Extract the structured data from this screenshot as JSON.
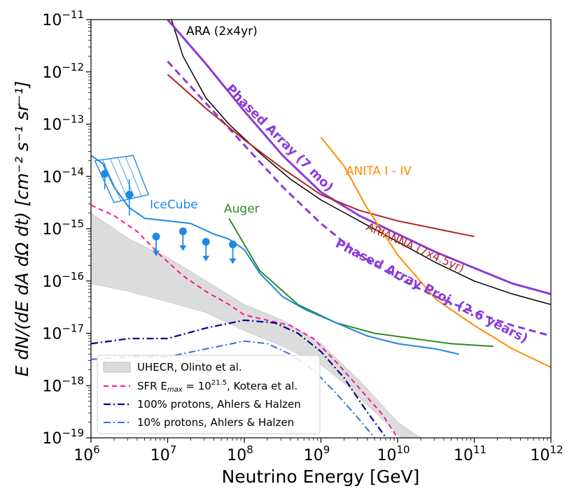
{
  "chart_data": {
    "type": "line",
    "title": "",
    "xlabel": "Neutrino Energy [GeV]",
    "ylabel": "E dN/(dE dA dΩ dt) [cm⁻² s⁻¹ sr⁻¹]",
    "xscale": "log",
    "yscale": "log",
    "xlim_exp": [
      6,
      12
    ],
    "ylim_exp": [
      -19,
      -11
    ],
    "x_tick_labels": [
      "10",
      "10",
      "10",
      "10",
      "10",
      "10",
      "10"
    ],
    "x_tick_exps": [
      "6",
      "7",
      "8",
      "9",
      "10",
      "11",
      "12"
    ],
    "y_tick_labels": [
      "10",
      "10",
      "10",
      "10",
      "10",
      "10",
      "10",
      "10",
      "10"
    ],
    "y_tick_exps": [
      "−19",
      "−18",
      "−17",
      "−16",
      "−15",
      "−14",
      "−13",
      "−12",
      "−11"
    ],
    "series": [
      {
        "name": "ARA (2x4yr)",
        "label": "ARA (2x4yr)",
        "color": "#000000",
        "width": 1.5,
        "dash": "",
        "points": [
          [
            7.05,
            -11.0
          ],
          [
            7.2,
            -11.7
          ],
          [
            7.5,
            -12.5
          ],
          [
            7.8,
            -13.0
          ],
          [
            8.2,
            -13.55
          ],
          [
            8.6,
            -14.05
          ],
          [
            9.0,
            -14.45
          ],
          [
            9.5,
            -14.85
          ],
          [
            10.0,
            -15.25
          ],
          [
            10.5,
            -15.65
          ],
          [
            11.0,
            -16.0
          ],
          [
            11.5,
            -16.25
          ],
          [
            12.0,
            -16.45
          ]
        ]
      },
      {
        "name": "Phased Array (7 mo)",
        "label": "Phased Array (7 mo)",
        "color": "#8b3bdb",
        "width": 3,
        "dash": "",
        "points": [
          [
            7.0,
            -11.0
          ],
          [
            7.5,
            -11.85
          ],
          [
            8.0,
            -12.75
          ],
          [
            8.5,
            -13.6
          ],
          [
            9.0,
            -14.3
          ],
          [
            9.5,
            -14.75
          ],
          [
            10.0,
            -15.1
          ],
          [
            10.5,
            -15.45
          ],
          [
            11.0,
            -15.75
          ],
          [
            11.5,
            -16.05
          ],
          [
            12.0,
            -16.25
          ]
        ]
      },
      {
        "name": "Phased Array Proj. (2.6 years)",
        "label": "Phased Array Proj. (2.6 years)",
        "color": "#8b3bdb",
        "width": 3,
        "dash": "10,6",
        "points": [
          [
            7.0,
            -11.8
          ],
          [
            7.5,
            -12.6
          ],
          [
            8.0,
            -13.4
          ],
          [
            8.5,
            -14.2
          ],
          [
            9.0,
            -14.9
          ],
          [
            9.5,
            -15.5
          ],
          [
            10.0,
            -15.95
          ],
          [
            10.5,
            -16.3
          ],
          [
            11.0,
            -16.6
          ],
          [
            11.5,
            -16.85
          ],
          [
            12.0,
            -17.05
          ]
        ]
      },
      {
        "name": "ARIANNA (7x4.5yr)",
        "label": "ARIANNA (7x4.5yr)",
        "color": "#b22222",
        "width": 2,
        "dash": "",
        "points": [
          [
            7.0,
            -12.05
          ],
          [
            7.5,
            -12.7
          ],
          [
            8.0,
            -13.3
          ],
          [
            8.5,
            -13.85
          ],
          [
            9.0,
            -14.35
          ],
          [
            9.5,
            -14.65
          ],
          [
            10.0,
            -14.85
          ],
          [
            10.5,
            -15.0
          ],
          [
            11.0,
            -15.15
          ]
        ]
      },
      {
        "name": "ANITA I - IV",
        "label": "ANITA I - IV",
        "color": "#ff8c00",
        "width": 2,
        "dash": "",
        "points": [
          [
            9.0,
            -13.25
          ],
          [
            9.3,
            -13.8
          ],
          [
            9.6,
            -14.6
          ],
          [
            10.0,
            -15.5
          ],
          [
            10.5,
            -16.35
          ],
          [
            11.0,
            -16.85
          ],
          [
            11.5,
            -17.3
          ],
          [
            12.0,
            -17.65
          ]
        ]
      },
      {
        "name": "Auger",
        "label": "Auger",
        "color": "#2e8b22",
        "width": 2,
        "dash": "",
        "points": [
          [
            7.8,
            -14.8
          ],
          [
            8.2,
            -15.8
          ],
          [
            8.7,
            -16.45
          ],
          [
            9.2,
            -16.8
          ],
          [
            9.7,
            -17.0
          ],
          [
            10.2,
            -17.1
          ],
          [
            10.7,
            -17.2
          ],
          [
            11.25,
            -17.25
          ]
        ]
      },
      {
        "name": "IceCube",
        "label": "IceCube",
        "color": "#1e88e5",
        "width": 2,
        "dash": "",
        "points": [
          [
            6.0,
            -13.6
          ],
          [
            6.15,
            -13.75
          ],
          [
            6.3,
            -14.2
          ],
          [
            6.5,
            -14.6
          ],
          [
            6.7,
            -14.8
          ],
          [
            7.0,
            -14.85
          ],
          [
            7.3,
            -14.9
          ],
          [
            7.6,
            -15.1
          ],
          [
            7.8,
            -15.2
          ],
          [
            8.0,
            -15.4
          ],
          [
            8.2,
            -15.85
          ],
          [
            8.5,
            -16.3
          ],
          [
            8.8,
            -16.55
          ],
          [
            9.2,
            -16.8
          ],
          [
            9.6,
            -17.05
          ],
          [
            10.0,
            -17.2
          ],
          [
            10.5,
            -17.3
          ],
          [
            10.8,
            -17.4
          ]
        ]
      },
      {
        "name": "SFR Kotera",
        "label": "SFR E_max=10^21.5, Kotera et al.",
        "color": "#ff1493",
        "width": 2,
        "dash": "7,5",
        "points": [
          [
            6.0,
            -14.55
          ],
          [
            6.3,
            -14.75
          ],
          [
            6.6,
            -15.05
          ],
          [
            6.9,
            -15.5
          ],
          [
            7.2,
            -15.9
          ],
          [
            7.5,
            -16.2
          ],
          [
            7.8,
            -16.45
          ],
          [
            8.0,
            -16.65
          ],
          [
            8.3,
            -16.75
          ],
          [
            8.6,
            -16.85
          ],
          [
            8.9,
            -17.1
          ],
          [
            9.2,
            -17.55
          ],
          [
            9.5,
            -18.05
          ],
          [
            9.8,
            -18.55
          ],
          [
            10.0,
            -19.0
          ]
        ]
      },
      {
        "name": "100% protons",
        "label": "100% protons, Ahlers & Halzen",
        "color": "#00008b",
        "width": 2.2,
        "dash": "10,4,2,4",
        "points": [
          [
            6.0,
            -17.2
          ],
          [
            6.5,
            -17.1
          ],
          [
            7.0,
            -17.1
          ],
          [
            7.5,
            -16.9
          ],
          [
            8.0,
            -16.75
          ],
          [
            8.4,
            -16.8
          ],
          [
            8.7,
            -17.0
          ],
          [
            9.0,
            -17.35
          ],
          [
            9.3,
            -17.85
          ],
          [
            9.6,
            -18.5
          ],
          [
            9.85,
            -19.0
          ]
        ]
      },
      {
        "name": "10% protons",
        "label": "10% protons, Ahlers & Halzen",
        "color": "#3b6fd8",
        "width": 2,
        "dash": "10,4,2,4",
        "points": [
          [
            6.0,
            -17.5
          ],
          [
            6.5,
            -17.45
          ],
          [
            7.0,
            -17.45
          ],
          [
            7.5,
            -17.3
          ],
          [
            8.0,
            -17.15
          ],
          [
            8.3,
            -17.2
          ],
          [
            8.6,
            -17.4
          ],
          [
            8.9,
            -17.7
          ],
          [
            9.2,
            -18.15
          ],
          [
            9.5,
            -18.65
          ],
          [
            9.7,
            -19.0
          ]
        ]
      }
    ],
    "uhecr_band": {
      "label": "UHECR, Olinto et al.",
      "color": "#dcdcdc",
      "upper": [
        [
          6.0,
          -14.7
        ],
        [
          6.5,
          -15.2
        ],
        [
          7.0,
          -15.55
        ],
        [
          7.5,
          -16.0
        ],
        [
          8.0,
          -16.45
        ],
        [
          8.5,
          -16.75
        ],
        [
          9.0,
          -17.2
        ],
        [
          9.5,
          -17.9
        ],
        [
          10.0,
          -18.7
        ],
        [
          10.3,
          -19.0
        ]
      ],
      "lower": [
        [
          10.05,
          -19.0
        ],
        [
          9.7,
          -18.5
        ],
        [
          9.3,
          -17.95
        ],
        [
          9.0,
          -17.6
        ],
        [
          8.5,
          -17.25
        ],
        [
          8.0,
          -16.95
        ],
        [
          7.5,
          -16.6
        ],
        [
          7.0,
          -16.4
        ],
        [
          6.5,
          -16.2
        ],
        [
          6.0,
          -16.05
        ]
      ]
    },
    "icecube_points": [
      {
        "x": 6.18,
        "y": -13.95,
        "yerr_lo": 0.3,
        "yerr_hi": 0.2
      },
      {
        "x": 6.5,
        "y": -14.35,
        "yerr_lo": 0.4,
        "yerr_hi": 0.3
      }
    ],
    "icecube_upper_limits": [
      {
        "x": 6.85,
        "y": -15.15
      },
      {
        "x": 7.2,
        "y": -15.05
      },
      {
        "x": 7.5,
        "y": -15.25
      },
      {
        "x": 7.85,
        "y": -15.3
      }
    ],
    "icecube_box": [
      [
        6.05,
        -13.7
      ],
      [
        6.55,
        -13.6
      ],
      [
        6.75,
        -14.35
      ],
      [
        6.3,
        -14.5
      ],
      [
        6.05,
        -13.7
      ]
    ],
    "legend": {
      "placement": "lower-left",
      "entries": [
        {
          "key": "uhecr",
          "text": "UHECR, Olinto et al."
        },
        {
          "key": "sfr",
          "text_pre": "SFR E",
          "text_sub": "max",
          "text_mid": " = 10",
          "text_sup": "21.5",
          "text_post": ", Kotera et al."
        },
        {
          "key": "p100",
          "text": "100% protons, Ahlers & Halzen"
        },
        {
          "key": "p10",
          "text": "10% protons, Ahlers & Halzen"
        }
      ]
    },
    "annotations": {
      "ara": "ARA (2x4yr)",
      "phased7": "Phased Array (7 mo)",
      "phased_proj": "Phased Array Proj. (2.6 years)",
      "anita": "ANITA I - IV",
      "arianna": "ARIANNA (7x4.5yr)",
      "auger": "Auger",
      "icecube": "IceCube"
    }
  }
}
